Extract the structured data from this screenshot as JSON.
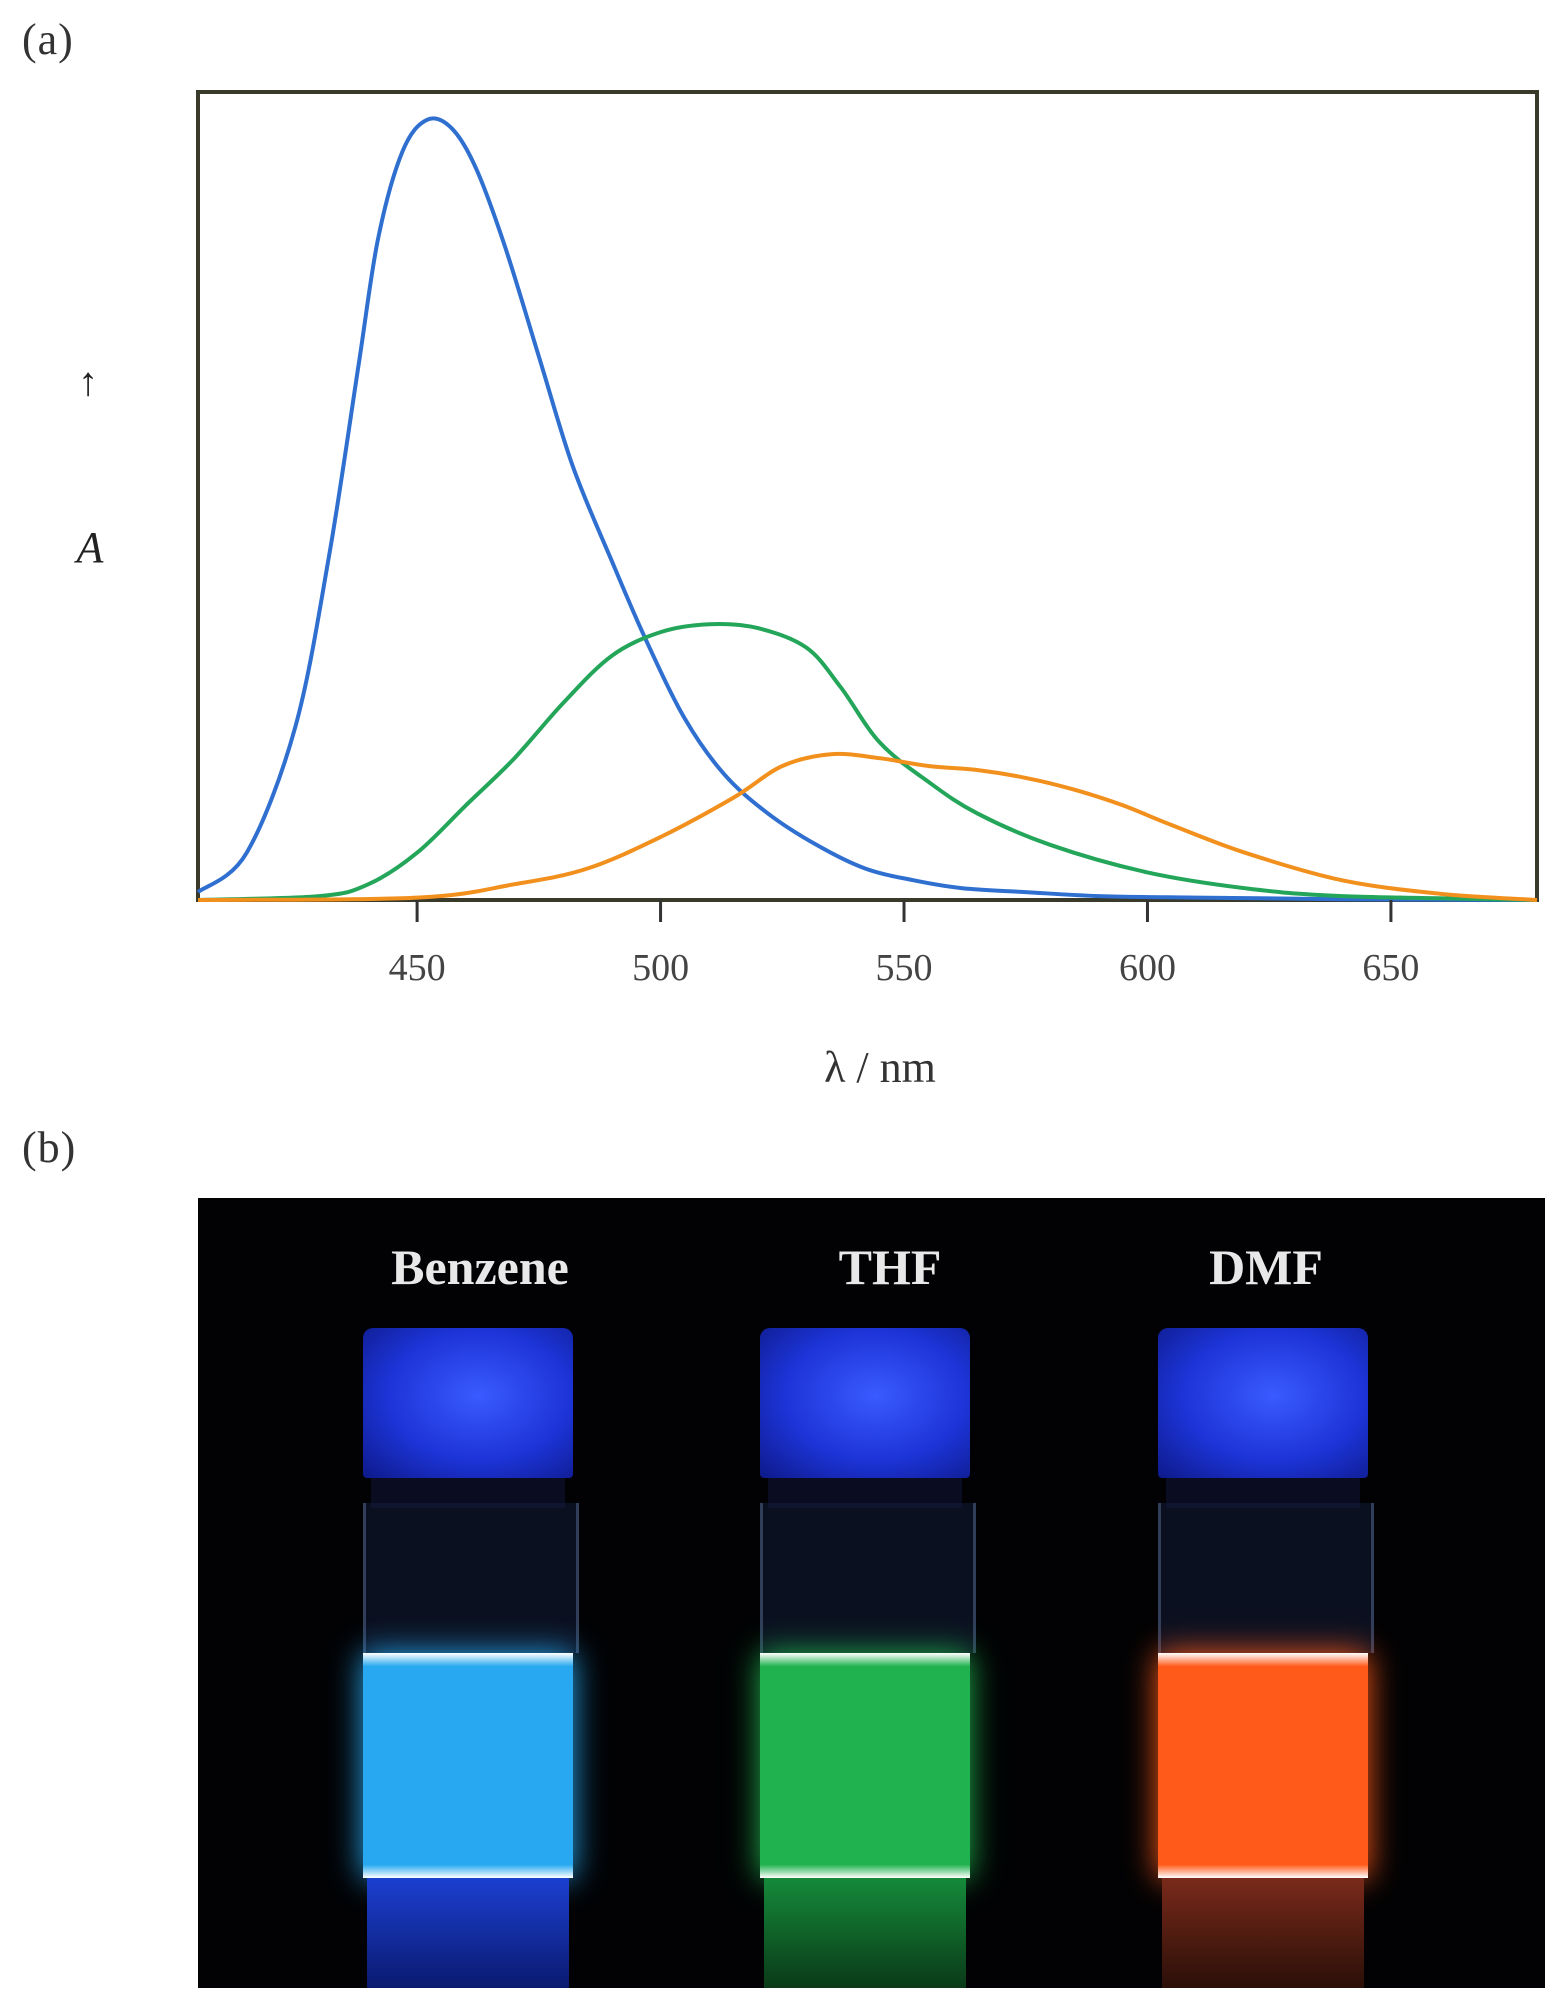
{
  "panel_a_label": "(a)",
  "panel_b_label": "(b)",
  "chart_data": {
    "type": "line",
    "title": "",
    "xlabel": "λ / nm",
    "ylabel": "A",
    "xlim": [
      405,
      680
    ],
    "ylim": [
      0,
      1.0
    ],
    "x_ticks": [
      450,
      500,
      550,
      600,
      650
    ],
    "x_tick_labels": [
      "450",
      "500",
      "550",
      "600",
      "650"
    ],
    "grid": false,
    "series": [
      {
        "color": "#2f6fd0",
        "x": [
          405,
          415,
          425,
          432,
          438,
          442,
          447,
          452,
          457,
          462,
          468,
          475,
          482,
          490,
          497,
          505,
          513,
          522,
          532,
          542,
          552,
          562,
          575,
          590,
          610,
          640,
          680
        ],
        "y": [
          0.01,
          0.06,
          0.22,
          0.44,
          0.68,
          0.84,
          0.95,
          0.99,
          0.98,
          0.93,
          0.83,
          0.69,
          0.55,
          0.43,
          0.33,
          0.23,
          0.16,
          0.11,
          0.07,
          0.04,
          0.025,
          0.015,
          0.01,
          0.005,
          0.003,
          0.001,
          0.0
        ]
      },
      {
        "color": "#24a65a",
        "x": [
          405,
          430,
          440,
          450,
          460,
          470,
          480,
          490,
          500,
          510,
          520,
          530,
          537,
          545,
          555,
          565,
          580,
          600,
          620,
          640,
          680
        ],
        "y": [
          0.0,
          0.005,
          0.02,
          0.06,
          0.12,
          0.18,
          0.25,
          0.31,
          0.34,
          0.35,
          0.345,
          0.32,
          0.27,
          0.2,
          0.15,
          0.11,
          0.07,
          0.035,
          0.015,
          0.005,
          0.0
        ]
      },
      {
        "color": "#f2901e",
        "x": [
          405,
          450,
          470,
          485,
          500,
          515,
          525,
          535,
          545,
          555,
          565,
          575,
          585,
          595,
          605,
          620,
          640,
          660,
          680
        ],
        "y": [
          0.0,
          0.003,
          0.02,
          0.04,
          0.08,
          0.13,
          0.17,
          0.185,
          0.18,
          0.17,
          0.165,
          0.155,
          0.14,
          0.12,
          0.095,
          0.06,
          0.025,
          0.008,
          0.0
        ]
      }
    ]
  },
  "photo": {
    "vials": [
      {
        "label": "Benzene",
        "liquid_color": "#27a8f0"
      },
      {
        "label": "THF",
        "liquid_color": "#1fb24e"
      },
      {
        "label": "DMF",
        "liquid_color": "#ff5a1a"
      }
    ]
  }
}
